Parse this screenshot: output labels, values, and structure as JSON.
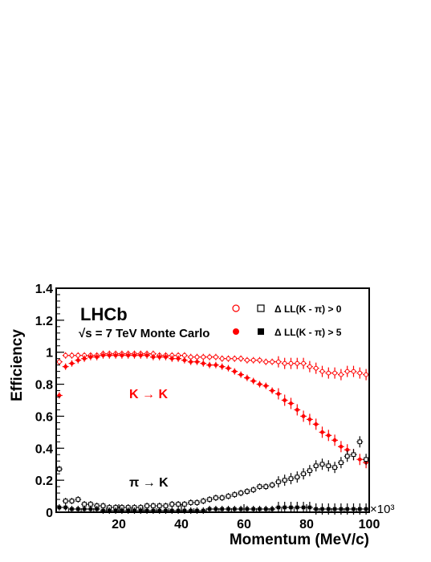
{
  "chart_data": {
    "type": "scatter",
    "title": "",
    "xlabel": "Momentum (MeV/c)",
    "ylabel": "Efficiency",
    "x_multiplier": "×10³",
    "xlim": [
      0,
      100
    ],
    "ylim": [
      0,
      1.4
    ],
    "x_ticks": [
      20,
      40,
      60,
      80,
      100
    ],
    "y_ticks": [
      0,
      0.2,
      0.4,
      0.6,
      0.8,
      1,
      1.2,
      1.4
    ],
    "grid": false,
    "annotations": {
      "experiment": "LHCb",
      "condition": "√s = 7 TeV Monte Carlo",
      "kk_label": "K → K",
      "pik_label": "π → K"
    },
    "legend": {
      "placement": "top-right",
      "entries": [
        {
          "label": "Δ LL(K - π) > 0",
          "markers": [
            "open-circle",
            "open-square"
          ]
        },
        {
          "label": "Δ LL(K - π) > 5",
          "markers": [
            "filled-circle",
            "filled-square"
          ]
        }
      ]
    },
    "colors": {
      "kaon": "#ff0000",
      "pion": "#000000"
    },
    "x": [
      1,
      3,
      5,
      7,
      9,
      11,
      13,
      15,
      17,
      19,
      21,
      23,
      25,
      27,
      29,
      31,
      33,
      35,
      37,
      39,
      41,
      43,
      45,
      47,
      49,
      51,
      53,
      55,
      57,
      59,
      61,
      63,
      65,
      67,
      69,
      71,
      73,
      75,
      77,
      79,
      81,
      83,
      85,
      87,
      89,
      91,
      93,
      95,
      97,
      99
    ],
    "series": [
      {
        "key": "k_to_k_dll0",
        "marker": "open-circle",
        "color": "#ff0000",
        "values": [
          0.94,
          0.98,
          0.98,
          0.98,
          0.98,
          0.98,
          0.98,
          0.99,
          0.99,
          0.99,
          0.99,
          0.99,
          0.99,
          0.99,
          0.99,
          0.99,
          0.98,
          0.98,
          0.98,
          0.98,
          0.98,
          0.97,
          0.97,
          0.97,
          0.97,
          0.97,
          0.96,
          0.96,
          0.96,
          0.96,
          0.95,
          0.95,
          0.95,
          0.94,
          0.94,
          0.94,
          0.93,
          0.93,
          0.93,
          0.93,
          0.91,
          0.9,
          0.88,
          0.87,
          0.87,
          0.86,
          0.88,
          0.88,
          0.87,
          0.86
        ]
      },
      {
        "key": "k_to_k_dll5",
        "marker": "filled-circle",
        "color": "#ff0000",
        "values": [
          0.73,
          0.91,
          0.93,
          0.95,
          0.96,
          0.97,
          0.97,
          0.98,
          0.98,
          0.98,
          0.98,
          0.98,
          0.98,
          0.98,
          0.98,
          0.97,
          0.97,
          0.97,
          0.96,
          0.96,
          0.95,
          0.94,
          0.94,
          0.93,
          0.92,
          0.92,
          0.91,
          0.9,
          0.88,
          0.86,
          0.84,
          0.82,
          0.8,
          0.79,
          0.76,
          0.74,
          0.7,
          0.68,
          0.64,
          0.6,
          0.58,
          0.55,
          0.5,
          0.48,
          0.45,
          0.41,
          0.39,
          0.36,
          0.33,
          0.31
        ]
      },
      {
        "key": "pi_to_k_dll0",
        "marker": "open-square",
        "color": "#000000",
        "values": [
          0.27,
          0.07,
          0.07,
          0.08,
          0.05,
          0.05,
          0.04,
          0.04,
          0.03,
          0.03,
          0.03,
          0.03,
          0.03,
          0.03,
          0.04,
          0.04,
          0.04,
          0.04,
          0.05,
          0.05,
          0.05,
          0.06,
          0.06,
          0.07,
          0.08,
          0.09,
          0.09,
          0.1,
          0.11,
          0.12,
          0.13,
          0.14,
          0.16,
          0.16,
          0.17,
          0.19,
          0.2,
          0.21,
          0.22,
          0.24,
          0.26,
          0.29,
          0.3,
          0.29,
          0.28,
          0.31,
          0.35,
          0.36,
          0.44,
          0.33
        ]
      },
      {
        "key": "pi_to_k_dll5",
        "marker": "filled-square",
        "color": "#000000",
        "values": [
          0.03,
          0.03,
          0.02,
          0.02,
          0.02,
          0.02,
          0.02,
          0.01,
          0.01,
          0.01,
          0.01,
          0.01,
          0.01,
          0.01,
          0.01,
          0.01,
          0.01,
          0.01,
          0.01,
          0.01,
          0.01,
          0.01,
          0.01,
          0.01,
          0.02,
          0.02,
          0.02,
          0.02,
          0.02,
          0.02,
          0.02,
          0.02,
          0.02,
          0.02,
          0.02,
          0.03,
          0.03,
          0.03,
          0.03,
          0.03,
          0.03,
          0.02,
          0.02,
          0.02,
          0.02,
          0.02,
          0.02,
          0.02,
          0.02,
          0.02
        ]
      }
    ]
  }
}
